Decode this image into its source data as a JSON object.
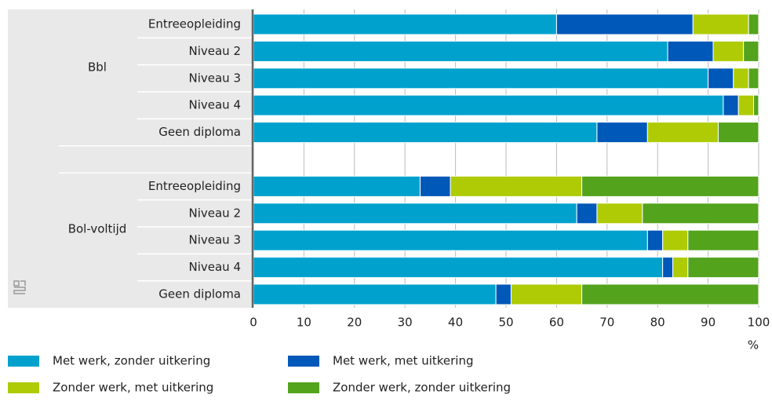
{
  "chart_data": {
    "type": "stacked-barh",
    "groups": [
      "Bbl",
      "Bol-voltijd"
    ],
    "group_rows": [
      [
        0,
        4
      ],
      [
        6,
        10
      ]
    ],
    "categories": [
      "Entreeopleiding",
      "Niveau 2",
      "Niveau 3",
      "Niveau 4",
      "Geen diploma",
      null,
      "Entreeopleiding",
      "Niveau 2",
      "Niveau 3",
      "Niveau 4",
      "Geen diploma"
    ],
    "series": [
      {
        "name": "Met werk, zonder uitkering",
        "color": "#00a1cd",
        "values": [
          60,
          82,
          90,
          93,
          68,
          null,
          33,
          64,
          78,
          81,
          48
        ]
      },
      {
        "name": "Met werk, met uitkering",
        "color": "#0058b8",
        "values": [
          27,
          9,
          5,
          3,
          10,
          null,
          6,
          4,
          3,
          2,
          3
        ]
      },
      {
        "name": "Zonder werk, met uitkering",
        "color": "#afcb05",
        "values": [
          11,
          6,
          3,
          3,
          14,
          null,
          26,
          9,
          5,
          3,
          14
        ]
      },
      {
        "name": "Zonder werk, zonder uitkering",
        "color": "#53a31d",
        "values": [
          2,
          3,
          2,
          1,
          8,
          null,
          35,
          23,
          14,
          14,
          35
        ]
      }
    ],
    "xlabel": "%",
    "xlim": [
      0,
      100
    ],
    "xticks": [
      0,
      10,
      20,
      30,
      40,
      50,
      60,
      70,
      80,
      90,
      100
    ],
    "grid": true
  }
}
